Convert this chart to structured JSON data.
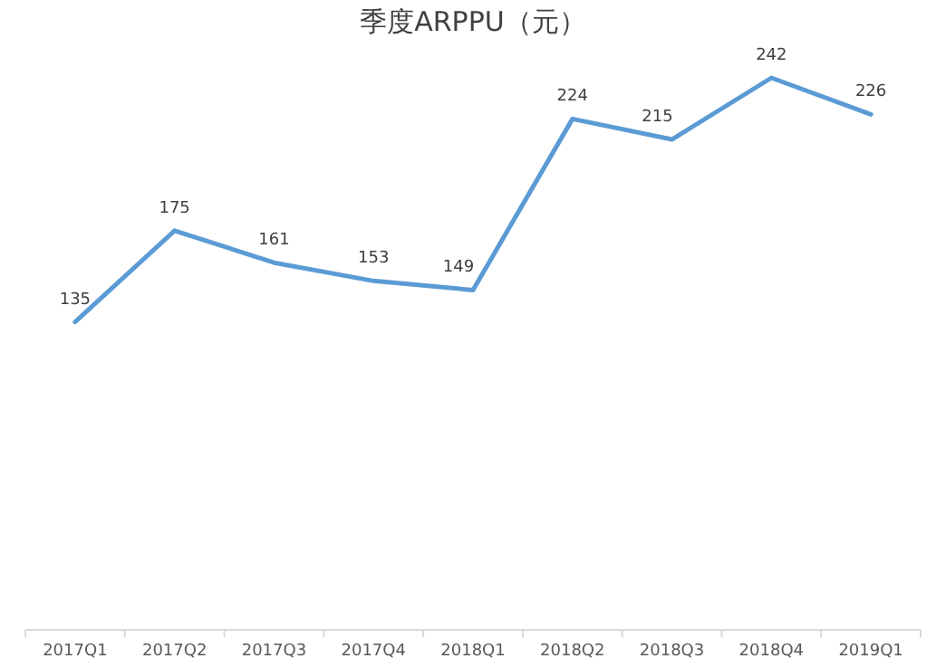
{
  "chart_data": {
    "type": "line",
    "title": "季度ARPPU（元）",
    "categories": [
      "2017Q1",
      "2017Q2",
      "2017Q3",
      "2017Q4",
      "2018Q1",
      "2018Q2",
      "2018Q3",
      "2018Q4",
      "2019Q1"
    ],
    "series": [
      {
        "color": "#5b9bd5",
        "values": [
          135,
          175,
          161,
          153,
          149,
          224,
          215,
          242,
          226
        ]
      }
    ],
    "data_labels": true,
    "marker": "none",
    "line_style": "solid"
  }
}
